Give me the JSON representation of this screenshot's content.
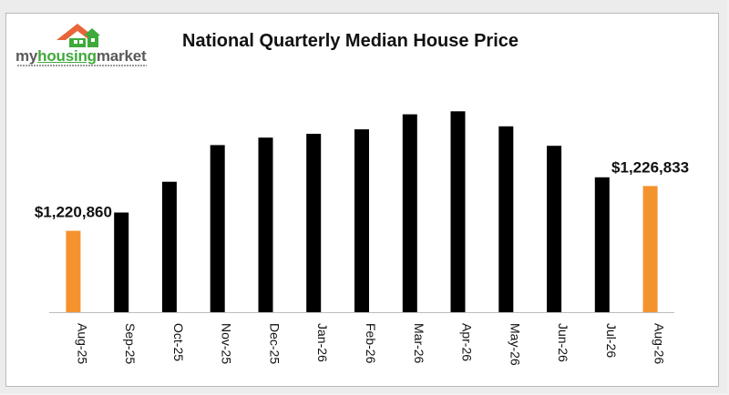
{
  "chart_data": {
    "type": "bar",
    "title": "National Quarterly Median House Price",
    "xlabel": "",
    "ylabel": "",
    "categories": [
      "Aug-25",
      "Sep-25",
      "Oct-25",
      "Nov-25",
      "Dec-25",
      "Jan-26",
      "Feb-26",
      "Mar-26",
      "Apr-26",
      "May-26",
      "Jun-26",
      "Jul-26",
      "Aug-26"
    ],
    "values": [
      1220860,
      1223300,
      1227400,
      1232300,
      1233300,
      1233800,
      1234400,
      1236400,
      1236800,
      1234800,
      1232200,
      1228000,
      1226833
    ],
    "ylim": [
      1210000,
      1240000
    ],
    "colors": {
      "default": "#000000",
      "highlight": "#f4922e"
    },
    "highlight_indices": [
      0,
      12
    ],
    "data_labels": [
      {
        "index": 0,
        "text": "$1,220,860"
      },
      {
        "index": 12,
        "text": "$1,226,833"
      }
    ],
    "grid": false,
    "legend": "none"
  },
  "logo": {
    "text_a": "my",
    "text_b": "housing",
    "text_c": "market",
    "icon": "house-icon"
  }
}
